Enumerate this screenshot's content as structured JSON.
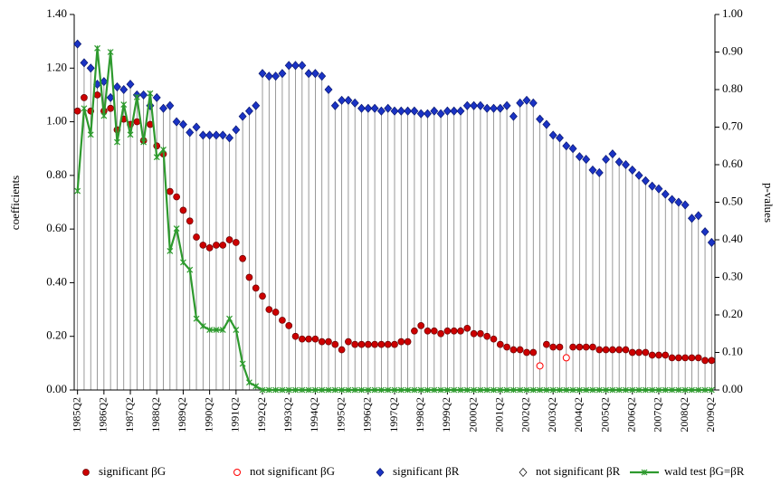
{
  "chart_data": {
    "type": "line",
    "y_label": "coefficients",
    "y2_label": "p-values",
    "ylim": [
      0,
      1.4
    ],
    "yticks": [
      {
        "value": 0,
        "label": "0.00"
      },
      {
        "value": 0.2,
        "label": "0.20"
      },
      {
        "value": 0.4,
        "label": "0.40"
      },
      {
        "value": 0.6,
        "label": "0.60"
      },
      {
        "value": 0.8,
        "label": "0.80"
      },
      {
        "value": 1.0,
        "label": "1.00"
      },
      {
        "value": 1.2,
        "label": "1.20"
      },
      {
        "value": 1.4,
        "label": "1.40"
      }
    ],
    "y2lim": [
      0,
      1.0
    ],
    "y2ticks": [
      {
        "value": 0,
        "label": "0.00"
      },
      {
        "value": 0.1,
        "label": "0.10"
      },
      {
        "value": 0.2,
        "label": "0.20"
      },
      {
        "value": 0.3,
        "label": "0.30"
      },
      {
        "value": 0.4,
        "label": "0.40"
      },
      {
        "value": 0.5,
        "label": "0.50"
      },
      {
        "value": 0.6,
        "label": "0.60"
      },
      {
        "value": 0.7,
        "label": "0.70"
      },
      {
        "value": 0.8,
        "label": "0.80"
      },
      {
        "value": 0.9,
        "label": "0.90"
      },
      {
        "value": 1.0,
        "label": "1.00"
      }
    ],
    "drop_lines": true,
    "legend": "bottom",
    "categories": [
      "1985Q2",
      null,
      null,
      null,
      "1986Q2",
      null,
      null,
      null,
      "1987Q2",
      null,
      null,
      null,
      "1988Q2",
      null,
      null,
      null,
      "1989Q2",
      null,
      null,
      null,
      "1990Q2",
      null,
      null,
      null,
      "1991Q2",
      null,
      null,
      null,
      "1992Q2",
      null,
      null,
      null,
      "1993Q2",
      null,
      null,
      null,
      "1994Q2",
      null,
      null,
      null,
      "1995Q2",
      null,
      null,
      null,
      "1996Q2",
      null,
      null,
      null,
      "1997Q2",
      null,
      null,
      null,
      "1998Q2",
      null,
      null,
      null,
      "1999Q2",
      null,
      null,
      null,
      "2000Q2",
      null,
      null,
      null,
      "2001Q2",
      null,
      null,
      null,
      "2002Q2",
      null,
      null,
      null,
      "2003Q2",
      null,
      null,
      null,
      "2004Q2",
      null,
      null,
      null,
      "2005Q2",
      null,
      null,
      null,
      "2006Q2",
      null,
      null,
      null,
      "2007Q2",
      null,
      null,
      null,
      "2008Q2",
      null,
      null,
      null,
      "2009Q2"
    ],
    "series": [
      {
        "name": "significant βG",
        "color": "#cc0000",
        "marker": "circle",
        "values": [
          1.04,
          1.09,
          1.04,
          1.1,
          1.04,
          1.05,
          0.97,
          1.01,
          0.99,
          1.0,
          0.93,
          0.99,
          0.91,
          0.88,
          0.74,
          0.72,
          0.67,
          0.63,
          0.57,
          0.54,
          0.53,
          0.54,
          0.54,
          0.56,
          0.55,
          0.49,
          0.42,
          0.38,
          0.35,
          0.3,
          0.29,
          0.26,
          0.24,
          0.2,
          0.19,
          0.19,
          0.19,
          0.18,
          0.18,
          0.17,
          0.15,
          0.18,
          0.17,
          0.17,
          0.17,
          0.17,
          0.17,
          0.17,
          0.17,
          0.18,
          0.18,
          0.22,
          0.24,
          0.22,
          0.22,
          0.21,
          0.22,
          0.22,
          0.22,
          0.23,
          0.21,
          0.21,
          0.2,
          0.19,
          0.17,
          0.16,
          0.15,
          0.15,
          0.14,
          0.14,
          null,
          0.17,
          0.16,
          0.16,
          null,
          0.16,
          0.16,
          0.16,
          0.16,
          0.15,
          0.15,
          0.15,
          0.15,
          0.15,
          0.14,
          0.14,
          0.14,
          0.13,
          0.13,
          0.13,
          0.12,
          0.12,
          0.12,
          0.12,
          0.12,
          0.11,
          0.11
        ]
      },
      {
        "name": "not significant βG",
        "color": "#ff0000",
        "marker": "circle-open",
        "values": [
          null,
          null,
          null,
          null,
          null,
          null,
          null,
          null,
          null,
          null,
          null,
          null,
          null,
          null,
          null,
          null,
          null,
          null,
          null,
          null,
          null,
          null,
          null,
          null,
          null,
          null,
          null,
          null,
          null,
          null,
          null,
          null,
          null,
          null,
          null,
          null,
          null,
          null,
          null,
          null,
          null,
          null,
          null,
          null,
          null,
          null,
          null,
          null,
          null,
          null,
          null,
          null,
          null,
          null,
          null,
          null,
          null,
          null,
          null,
          null,
          null,
          null,
          null,
          null,
          null,
          null,
          null,
          null,
          null,
          null,
          0.09,
          null,
          null,
          null,
          0.12,
          null,
          null,
          null,
          null,
          null,
          null,
          null,
          null,
          null,
          null,
          null,
          null,
          null,
          null,
          null,
          null,
          null,
          null,
          null,
          null,
          null,
          null
        ]
      },
      {
        "name": "significant βR",
        "color": "#1a33c4",
        "marker": "diamond",
        "values": [
          1.29,
          1.22,
          1.2,
          1.14,
          1.15,
          1.09,
          1.13,
          1.12,
          1.14,
          1.1,
          1.1,
          1.06,
          1.09,
          1.05,
          1.06,
          1.0,
          0.99,
          0.96,
          0.98,
          0.95,
          0.95,
          0.95,
          0.95,
          0.94,
          0.97,
          1.02,
          1.04,
          1.06,
          1.18,
          1.17,
          1.17,
          1.18,
          1.21,
          1.21,
          1.21,
          1.18,
          1.18,
          1.17,
          1.12,
          1.06,
          1.08,
          1.08,
          1.07,
          1.05,
          1.05,
          1.05,
          1.04,
          1.05,
          1.04,
          1.04,
          1.04,
          1.04,
          1.03,
          1.03,
          1.04,
          1.03,
          1.04,
          1.04,
          1.04,
          1.06,
          1.06,
          1.06,
          1.05,
          1.05,
          1.05,
          1.06,
          1.02,
          1.07,
          1.08,
          1.07,
          1.01,
          0.99,
          0.95,
          0.94,
          0.91,
          0.9,
          0.87,
          0.86,
          0.82,
          0.81,
          0.86,
          0.88,
          0.85,
          0.84,
          0.82,
          0.8,
          0.78,
          0.76,
          0.75,
          0.73,
          0.71,
          0.7,
          0.69,
          0.64,
          0.65,
          0.59,
          0.55
        ]
      },
      {
        "name": "not significant βR",
        "color": "#000000",
        "marker": "diamond-open",
        "values": [
          null,
          null,
          null,
          null,
          null,
          null,
          null,
          null,
          null,
          null,
          null,
          null,
          null,
          null,
          null,
          null,
          null,
          null,
          null,
          null,
          null,
          null,
          null,
          null,
          null,
          null,
          null,
          null,
          null,
          null,
          null,
          null,
          null,
          null,
          null,
          null,
          null,
          null,
          null,
          null,
          null,
          null,
          null,
          null,
          null,
          null,
          null,
          null,
          null,
          null,
          null,
          null,
          null,
          null,
          null,
          null,
          null,
          null,
          null,
          null,
          null,
          null,
          null,
          null,
          null,
          null,
          null,
          null,
          null,
          null,
          null,
          null,
          null,
          null,
          null,
          null,
          null,
          null,
          null,
          null,
          null,
          null,
          null,
          null,
          null,
          null,
          null,
          null,
          null,
          null,
          null,
          null,
          null,
          null,
          null,
          null,
          null
        ]
      },
      {
        "name": "wald test βG=βR",
        "color": "#2e9a2e",
        "marker": "line-x",
        "axis": "y2",
        "values": [
          0.53,
          0.75,
          0.68,
          0.91,
          0.73,
          0.9,
          0.66,
          0.76,
          0.68,
          0.78,
          0.66,
          0.79,
          0.62,
          0.64,
          0.37,
          0.43,
          0.34,
          0.32,
          0.19,
          0.17,
          0.16,
          0.16,
          0.16,
          0.19,
          0.16,
          0.07,
          0.02,
          0.01,
          0,
          0,
          0,
          0,
          0,
          0,
          0,
          0,
          0,
          0,
          0,
          0,
          0,
          0,
          0,
          0,
          0,
          0,
          0,
          0,
          0,
          0,
          0,
          0,
          0,
          0,
          0,
          0,
          0,
          0,
          0,
          0,
          0,
          0,
          0,
          0,
          0,
          0,
          0,
          0,
          0,
          0,
          0,
          0,
          0,
          0,
          0,
          0,
          0,
          0,
          0,
          0,
          0,
          0,
          0,
          0,
          0,
          0,
          0,
          0,
          0,
          0,
          0,
          0,
          0,
          0,
          0,
          0,
          0
        ]
      }
    ]
  }
}
